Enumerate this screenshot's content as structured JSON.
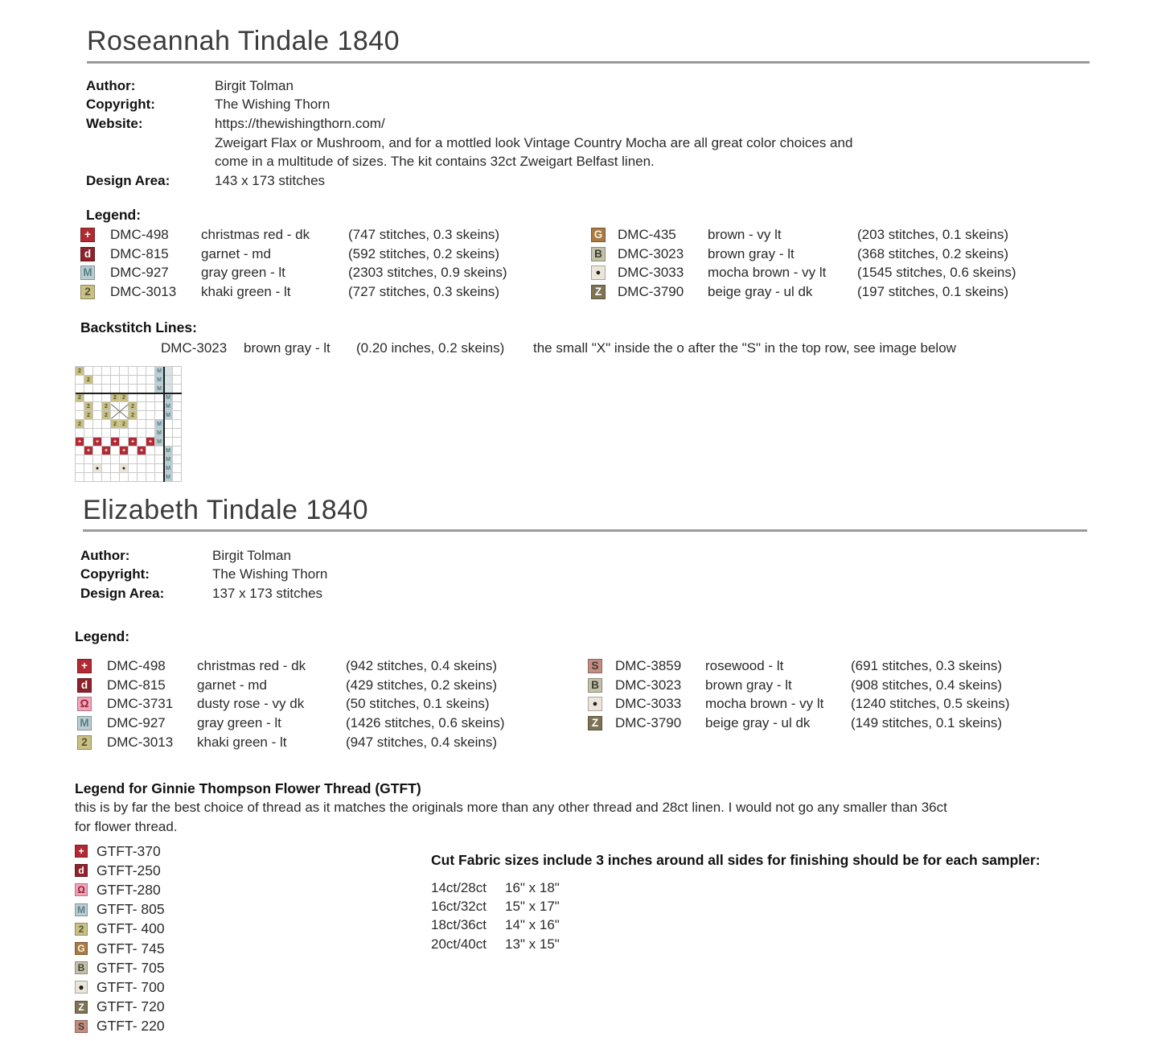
{
  "patterns": [
    {
      "title": "Roseannah Tindale 1840",
      "info": [
        {
          "label": "Author:",
          "value": "Birgit Tolman"
        },
        {
          "label": "Copyright:",
          "value": "The Wishing Thorn"
        },
        {
          "label": "Website:",
          "value": "https://thewishingthorn.com/"
        },
        {
          "label": "",
          "value": "Zweigart Flax or Mushroom, and for a mottled look Vintage Country Mocha are all great color choices and"
        },
        {
          "label": "",
          "value": "come in a multitude of sizes. The kit contains 32ct Zweigart Belfast linen."
        },
        {
          "label": "Design Area:",
          "value": "143 x 173 stitches"
        }
      ],
      "legend_heading": "Legend:",
      "legend_left": [
        {
          "sym": "+",
          "bg": "#b12a33",
          "fg": "#ffffff",
          "code": "DMC-498",
          "name": "christmas red - dk",
          "count": "(747 stitches, 0.3 skeins)"
        },
        {
          "sym": "d",
          "bg": "#8e222b",
          "fg": "#ffffff",
          "code": "DMC-815",
          "name": "garnet - md",
          "count": "(592 stitches, 0.2 skeins)"
        },
        {
          "sym": "M",
          "bg": "#b9ced2",
          "fg": "#5a7d85",
          "code": "DMC-927",
          "name": "gray green - lt",
          "count": "(2303 stitches, 0.9 skeins)"
        },
        {
          "sym": "2",
          "bg": "#c9c083",
          "fg": "#55523a",
          "code": "DMC-3013",
          "name": "khaki green - lt",
          "count": "(727 stitches, 0.3 skeins)"
        }
      ],
      "legend_right": [
        {
          "sym": "G",
          "bg": "#a87b43",
          "fg": "#f7f1e4",
          "code": "DMC-435",
          "name": "brown - vy lt",
          "count": "(203 stitches, 0.1 skeins)"
        },
        {
          "sym": "B",
          "bg": "#c3c1a8",
          "fg": "#3f3f33",
          "code": "DMC-3023",
          "name": "brown gray - lt",
          "count": "(368 stitches, 0.2 skeins)"
        },
        {
          "sym": "●",
          "bg": "#ece6da",
          "fg": "#1f1f1f",
          "code": "DMC-3033",
          "name": "mocha brown - vy lt",
          "count": "(1545 stitches, 0.6 skeins)"
        },
        {
          "sym": "Z",
          "bg": "#7f7355",
          "fg": "#ffffff",
          "code": "DMC-3790",
          "name": "beige gray - ul dk",
          "count": "(197 stitches, 0.1 skeins)"
        }
      ],
      "backstitch": {
        "heading": "Backstitch Lines:",
        "line_color": "#b2aa89",
        "code": "DMC-3023",
        "name": "brown gray - lt",
        "count": "(0.20 inches, 0.2 skeins)",
        "note": "the small \"X\" inside the o after the \"S\" in the top row, see image below"
      }
    },
    {
      "title": "Elizabeth Tindale 1840",
      "info": [
        {
          "label": "Author:",
          "value": "Birgit Tolman"
        },
        {
          "label": "Copyright:",
          "value": "The Wishing Thorn"
        },
        {
          "label": "Design Area:",
          "value": "137 x 173 stitches"
        }
      ],
      "legend_heading": "Legend:",
      "legend_left": [
        {
          "sym": "+",
          "bg": "#b12a33",
          "fg": "#ffffff",
          "code": "DMC-498",
          "name": "christmas red - dk",
          "count": "(942 stitches, 0.4 skeins)"
        },
        {
          "sym": "d",
          "bg": "#8e222b",
          "fg": "#ffffff",
          "code": "DMC-815",
          "name": "garnet - md",
          "count": "(429 stitches, 0.2 skeins)"
        },
        {
          "sym": "Ω",
          "bg": "#f3a2bc",
          "fg": "#8e222b",
          "code": "DMC-3731",
          "name": "dusty rose - vy dk",
          "count": "(50 stitches, 0.1 skeins)"
        },
        {
          "sym": "M",
          "bg": "#b9ced2",
          "fg": "#5a7d85",
          "code": "DMC-927",
          "name": "gray green - lt",
          "count": "(1426 stitches, 0.6 skeins)"
        },
        {
          "sym": "2",
          "bg": "#c9c083",
          "fg": "#55523a",
          "code": "DMC-3013",
          "name": "khaki green - lt",
          "count": "(947 stitches, 0.4 skeins)"
        }
      ],
      "legend_right": [
        {
          "sym": "S",
          "bg": "#c28e82",
          "fg": "#4a3734",
          "code": "DMC-3859",
          "name": "rosewood - lt",
          "count": "(691 stitches, 0.3 skeins)"
        },
        {
          "sym": "B",
          "bg": "#c3c1a8",
          "fg": "#3f3f33",
          "code": "DMC-3023",
          "name": "brown gray - lt",
          "count": "(908 stitches, 0.4 skeins)"
        },
        {
          "sym": "●",
          "bg": "#ece6da",
          "fg": "#1f1f1f",
          "code": "DMC-3033",
          "name": "mocha brown - vy lt",
          "count": "(1240 stitches, 0.5 skeins)"
        },
        {
          "sym": "Z",
          "bg": "#7f7355",
          "fg": "#ffffff",
          "code": "DMC-3790",
          "name": "beige gray - ul dk",
          "count": "(149 stitches, 0.1 skeins)"
        }
      ]
    }
  ],
  "gtft": {
    "heading": "Legend for Ginnie Thompson Flower Thread (GTFT)",
    "desc_line1": "this is by far the best choice of thread as it matches the originals more than any other thread and 28ct linen. I would not go any smaller than 36ct",
    "desc_line2": "for flower thread.",
    "items": [
      {
        "sym": "+",
        "bg": "#b12a33",
        "fg": "#ffffff",
        "code": "GTFT-370"
      },
      {
        "sym": "d",
        "bg": "#8e222b",
        "fg": "#ffffff",
        "code": "GTFT-250"
      },
      {
        "sym": "Ω",
        "bg": "#f3a2bc",
        "fg": "#8e222b",
        "code": "GTFT-280"
      },
      {
        "sym": "M",
        "bg": "#b9ced2",
        "fg": "#5a7d85",
        "code": "GTFT- 805"
      },
      {
        "sym": "2",
        "bg": "#c9c083",
        "fg": "#55523a",
        "code": "GTFT- 400"
      },
      {
        "sym": "G",
        "bg": "#a87b43",
        "fg": "#f7f1e4",
        "code": "GTFT- 745"
      },
      {
        "sym": "B",
        "bg": "#c3c1a8",
        "fg": "#3f3f33",
        "code": "GTFT- 705"
      },
      {
        "sym": "●",
        "bg": "#ece6da",
        "fg": "#1f1f1f",
        "code": "GTFT- 700"
      },
      {
        "sym": "Z",
        "bg": "#7f7355",
        "fg": "#ffffff",
        "code": "GTFT- 720"
      },
      {
        "sym": "S",
        "bg": "#c28e82",
        "fg": "#4a3734",
        "code": "GTFT- 220"
      }
    ]
  },
  "fabric": {
    "heading": "Cut Fabric sizes include 3 inches around all sides for finishing should be for each sampler:",
    "sizes": [
      {
        "ct": "14ct/28ct",
        "dims": "16\" x 18\""
      },
      {
        "ct": "16ct/32ct",
        "dims": "15\" x 17\""
      },
      {
        "ct": "18ct/36ct",
        "dims": "14\" x 16\""
      },
      {
        "ct": "20ct/40ct",
        "dims": "13\" x 15\""
      }
    ]
  },
  "chart_image": {
    "cell_size": 11,
    "rows": [
      "2........Mm.",
      ".2.......Mm.",
      ".........Mm.",
      "2...22....M.",
      ".2.2xx2...M.",
      ".2.2xx2...M.",
      "2...22...M..",
      ".........M..",
      "+.+.+.+.+M..",
      ".+.+.+.+..M.",
      "..........M.",
      "..o..o....M.",
      "..........M."
    ],
    "thick_h_row": 3,
    "thick_v_col": 10,
    "x_mark": {
      "col": 4,
      "row": 4,
      "w": 2,
      "h": 2
    },
    "palette": {
      "2": {
        "bg": "#c9c083",
        "fg": "#55523a",
        "ch": "2"
      },
      "+": {
        "bg": "#b12a33",
        "fg": "#ffffff",
        "ch": "+"
      },
      "M": {
        "bg": "#b9ced2",
        "fg": "#5a7d85",
        "ch": "M"
      },
      "m": {
        "bg": "#d5e3e6",
        "fg": "#d5e3e6",
        "ch": ""
      },
      "o": {
        "bg": "#ece6da",
        "fg": "#1f1f1f",
        "ch": "●"
      },
      "x": {
        "bg": "#ffffff",
        "fg": "#ffffff",
        "ch": ""
      },
      ".": {
        "bg": "#ffffff",
        "fg": "#cccccc",
        "ch": ""
      }
    }
  }
}
